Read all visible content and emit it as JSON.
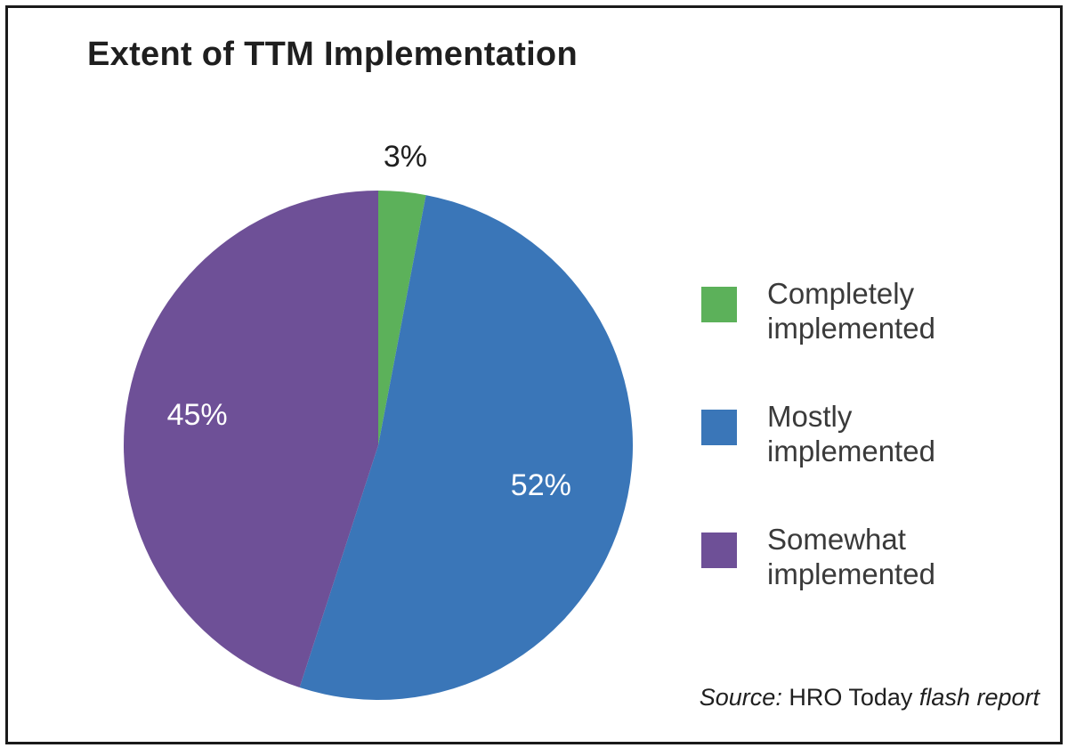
{
  "chart_data": {
    "type": "pie",
    "title": "Extent of TTM Implementation",
    "slices": [
      {
        "label": "Completely implemented",
        "legend_lines": [
          "Completely",
          "implemented"
        ],
        "value": 3,
        "value_label": "3%",
        "color": "#5cb15a"
      },
      {
        "label": "Mostly implemented",
        "legend_lines": [
          "Mostly",
          "implemented"
        ],
        "value": 52,
        "value_label": "52%",
        "color": "#3a76b8"
      },
      {
        "label": "Somewhat implemented",
        "legend_lines": [
          "Somewhat",
          "implemented"
        ],
        "value": 45,
        "value_label": "45%",
        "color": "#6e5097"
      }
    ],
    "legend_placement": "right"
  },
  "source": {
    "prefix": "Source:",
    "publisher": "HRO Today",
    "report": "flash report"
  }
}
